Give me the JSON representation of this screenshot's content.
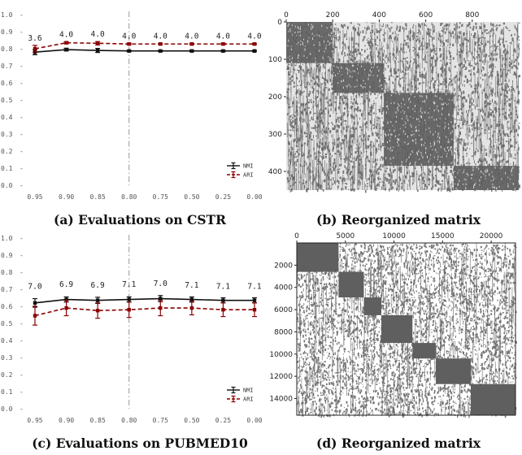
{
  "chart_data": [
    {
      "type": "line",
      "caption": "(a) Evaluations on CSTR",
      "categories": [
        "0.95",
        "0.90",
        "0.85",
        "0.80",
        "0.75",
        "0.50",
        "0.25",
        "0.00"
      ],
      "ylim": [
        0.0,
        1.0
      ],
      "yticks": [
        "0.0",
        "0.1",
        "0.2",
        "0.3",
        "0.4",
        "0.5",
        "0.6",
        "0.7",
        "0.8",
        "0.9",
        "1.0"
      ],
      "annotations": [
        "3.6",
        "4.0",
        "4.0",
        "4.0",
        "4.0",
        "4.0",
        "4.0",
        "4.0"
      ],
      "vline_category": "0.80",
      "legend_position": "bottom-right",
      "series": [
        {
          "name": "NMI",
          "color": "#111111",
          "dash": "solid",
          "values": [
            0.78,
            0.795,
            0.79,
            0.787,
            0.787,
            0.787,
            0.787,
            0.787
          ],
          "errors": [
            0.015,
            0.008,
            0.012,
            0.004,
            0.004,
            0.004,
            0.004,
            0.004
          ]
        },
        {
          "name": "ARI",
          "color": "#8b0000",
          "dash": "dashed",
          "values": [
            0.8,
            0.835,
            0.832,
            0.828,
            0.828,
            0.828,
            0.828,
            0.828
          ],
          "errors": [
            0.02,
            0.006,
            0.01,
            0.004,
            0.004,
            0.004,
            0.004,
            0.004
          ]
        }
      ]
    },
    {
      "type": "heatmap",
      "caption": "(b) Reorganized matrix",
      "xticks": [
        "0",
        "200",
        "400",
        "600",
        "800"
      ],
      "xtick_values": [
        0,
        200,
        400,
        600,
        800
      ],
      "xlim": [
        0,
        1000
      ],
      "yticks": [
        "0",
        "100",
        "200",
        "300",
        "400"
      ],
      "ytick_values": [
        0,
        100,
        200,
        300,
        400
      ],
      "ylim": [
        0,
        450
      ],
      "background_color": "#e4e4e4",
      "mark_color": "#5f5f5f",
      "blocks": [
        {
          "x": [
            0,
            200
          ],
          "y": [
            0,
            110
          ]
        },
        {
          "x": [
            200,
            420
          ],
          "y": [
            110,
            190
          ]
        },
        {
          "x": [
            420,
            720
          ],
          "y": [
            190,
            385
          ]
        },
        {
          "x": [
            720,
            1000
          ],
          "y": [
            385,
            450
          ]
        }
      ]
    },
    {
      "type": "line",
      "caption": "(c) Evaluations on PUBMED10",
      "categories": [
        "0.95",
        "0.90",
        "0.85",
        "0.80",
        "0.75",
        "0.50",
        "0.25",
        "0.00"
      ],
      "ylim": [
        0.0,
        1.0
      ],
      "yticks": [
        "0.0",
        "0.1",
        "0.2",
        "0.3",
        "0.4",
        "0.5",
        "0.6",
        "0.7",
        "0.8",
        "0.9",
        "1.0"
      ],
      "annotations": [
        "7.0",
        "6.9",
        "6.9",
        "7.1",
        "7.0",
        "7.1",
        "7.1",
        "7.1"
      ],
      "vline_category": "0.80",
      "legend_position": "bottom-right",
      "series": [
        {
          "name": "NMI",
          "color": "#111111",
          "dash": "solid",
          "values": [
            0.62,
            0.64,
            0.635,
            0.64,
            0.645,
            0.64,
            0.635,
            0.635
          ],
          "errors": [
            0.025,
            0.015,
            0.018,
            0.015,
            0.018,
            0.015,
            0.015,
            0.015
          ]
        },
        {
          "name": "ARI",
          "color": "#8b0000",
          "dash": "dashed",
          "values": [
            0.545,
            0.59,
            0.575,
            0.58,
            0.59,
            0.59,
            0.58,
            0.58
          ],
          "errors": [
            0.055,
            0.045,
            0.045,
            0.045,
            0.045,
            0.04,
            0.04,
            0.04
          ]
        }
      ]
    },
    {
      "type": "heatmap",
      "caption": "(d) Reorganized matrix",
      "xticks": [
        "0",
        "5000",
        "10000",
        "15000",
        "20000"
      ],
      "xtick_values": [
        0,
        5000,
        10000,
        15000,
        20000
      ],
      "xlim": [
        0,
        22500
      ],
      "yticks": [
        "2000",
        "4000",
        "6000",
        "8000",
        "10000",
        "12000",
        "14000"
      ],
      "ytick_values": [
        2000,
        4000,
        6000,
        8000,
        10000,
        12000,
        14000
      ],
      "ylim": [
        0,
        15500
      ],
      "background_color": "#ffffff",
      "mark_color": "#5f5f5f",
      "blocks": [
        {
          "x": [
            0,
            4300
          ],
          "y": [
            0,
            2600
          ]
        },
        {
          "x": [
            4300,
            6900
          ],
          "y": [
            2600,
            4900
          ]
        },
        {
          "x": [
            6900,
            8700
          ],
          "y": [
            4900,
            6500
          ]
        },
        {
          "x": [
            8700,
            11900
          ],
          "y": [
            6500,
            9000
          ]
        },
        {
          "x": [
            11900,
            14300
          ],
          "y": [
            9000,
            10400
          ]
        },
        {
          "x": [
            14300,
            17900
          ],
          "y": [
            10400,
            12700
          ]
        },
        {
          "x": [
            17900,
            22500
          ],
          "y": [
            12700,
            15500
          ]
        }
      ]
    }
  ]
}
